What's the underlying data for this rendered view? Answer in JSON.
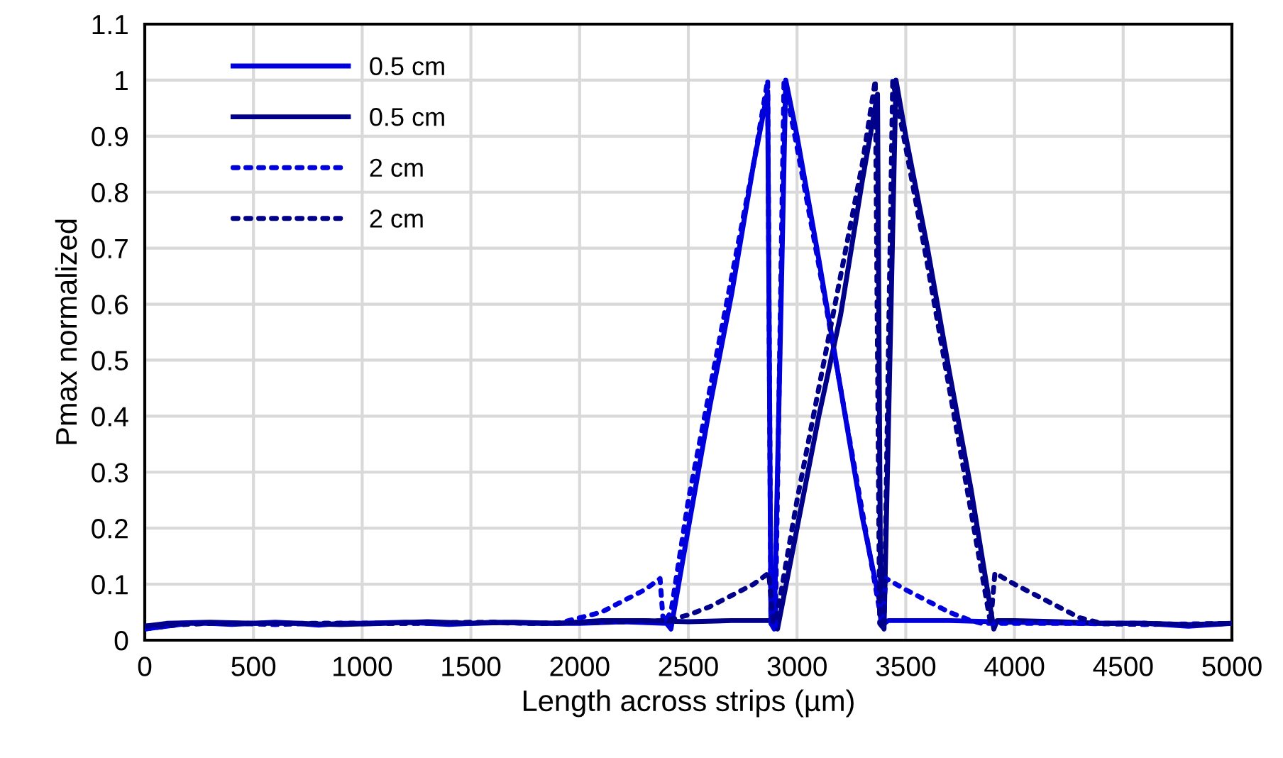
{
  "chart_data": {
    "type": "line",
    "xlabel": "Length across strips (µm)",
    "ylabel": "Pmax normalized",
    "xlim": [
      0,
      5000
    ],
    "xticks": [
      0,
      500,
      1000,
      1500,
      2000,
      2500,
      3000,
      3500,
      4000,
      4500,
      5000
    ],
    "ylim": [
      0,
      1.1
    ],
    "yticks": [
      0,
      0.1,
      0.2,
      0.3,
      0.4,
      0.5,
      0.6,
      0.7,
      0.8,
      0.9,
      1,
      1.1
    ],
    "grid": true,
    "legend": "top left",
    "marker": "none",
    "series": [
      {
        "name": "0.5 cm",
        "color": "#0000dd",
        "line_style": "solid",
        "x": [
          0,
          100,
          200,
          300,
          400,
          500,
          600,
          700,
          800,
          900,
          1000,
          1200,
          1400,
          1600,
          1800,
          2000,
          2200,
          2400,
          2420,
          2500,
          2600,
          2700,
          2800,
          2865,
          2880,
          2895,
          2948,
          3000,
          3100,
          3200,
          3300,
          3400,
          3420,
          3500,
          3700,
          4000,
          4300,
          4600,
          4800,
          5000
        ],
        "values": [
          0.02,
          0.025,
          0.03,
          0.03,
          0.028,
          0.03,
          0.032,
          0.03,
          0.027,
          0.03,
          0.03,
          0.032,
          0.028,
          0.032,
          0.03,
          0.03,
          0.033,
          0.03,
          0.02,
          0.2,
          0.42,
          0.62,
          0.85,
          0.98,
          0.03,
          0.02,
          1.0,
          0.9,
          0.68,
          0.45,
          0.22,
          0.03,
          0.035,
          0.035,
          0.035,
          0.032,
          0.03,
          0.03,
          0.025,
          0.03
        ]
      },
      {
        "name": "0.5 cm",
        "color": "#00008b",
        "line_style": "solid",
        "x": [
          0,
          100,
          300,
          500,
          700,
          900,
          1100,
          1300,
          1500,
          1700,
          1900,
          2100,
          2300,
          2500,
          2700,
          2895,
          2910,
          2925,
          3000,
          3100,
          3200,
          3300,
          3370,
          3385,
          3400,
          3455,
          3500,
          3600,
          3700,
          3800,
          3905,
          3920,
          4000,
          4200,
          4400,
          4600,
          4800,
          5000
        ],
        "values": [
          0.025,
          0.03,
          0.032,
          0.03,
          0.03,
          0.028,
          0.03,
          0.033,
          0.03,
          0.032,
          0.03,
          0.035,
          0.035,
          0.033,
          0.035,
          0.035,
          0.02,
          0.05,
          0.2,
          0.4,
          0.58,
          0.82,
          0.975,
          0.03,
          0.02,
          1.0,
          0.9,
          0.7,
          0.48,
          0.27,
          0.02,
          0.035,
          0.035,
          0.033,
          0.03,
          0.03,
          0.028,
          0.03
        ]
      },
      {
        "name": "2 cm",
        "color": "#0000dd",
        "line_style": "dotted",
        "x": [
          0,
          200,
          400,
          600,
          800,
          1000,
          1200,
          1400,
          1600,
          1800,
          1900,
          2000,
          2100,
          2200,
          2300,
          2370,
          2385,
          2420,
          2500,
          2600,
          2700,
          2800,
          2865,
          2880,
          2900,
          2940,
          3000,
          3100,
          3200,
          3300,
          3390,
          3410,
          3500,
          3600,
          3700,
          3800,
          3850,
          4000,
          4300,
          4600,
          5000
        ],
        "values": [
          0.02,
          0.03,
          0.03,
          0.028,
          0.03,
          0.03,
          0.03,
          0.03,
          0.032,
          0.03,
          0.03,
          0.04,
          0.05,
          0.07,
          0.09,
          0.11,
          0.03,
          0.05,
          0.25,
          0.45,
          0.65,
          0.85,
          1.0,
          0.03,
          0.02,
          1.0,
          0.88,
          0.67,
          0.45,
          0.23,
          0.03,
          0.11,
          0.09,
          0.07,
          0.05,
          0.035,
          0.03,
          0.03,
          0.03,
          0.028,
          0.03
        ]
      },
      {
        "name": "2 cm",
        "color": "#00008b",
        "line_style": "dotted",
        "x": [
          0,
          300,
          600,
          900,
          1200,
          1500,
          1800,
          2100,
          2400,
          2500,
          2600,
          2700,
          2800,
          2870,
          2890,
          2910,
          3000,
          3100,
          3200,
          3300,
          3360,
          3380,
          3400,
          3440,
          3500,
          3600,
          3700,
          3800,
          3890,
          3910,
          4000,
          4100,
          4200,
          4300,
          4400,
          4600,
          4800,
          5000
        ],
        "values": [
          0.025,
          0.03,
          0.03,
          0.03,
          0.03,
          0.032,
          0.03,
          0.032,
          0.035,
          0.045,
          0.06,
          0.08,
          0.1,
          0.12,
          0.03,
          0.05,
          0.25,
          0.45,
          0.65,
          0.85,
          1.0,
          0.03,
          0.02,
          1.0,
          0.88,
          0.67,
          0.45,
          0.23,
          0.03,
          0.12,
          0.1,
          0.08,
          0.06,
          0.04,
          0.03,
          0.03,
          0.028,
          0.03
        ]
      }
    ]
  }
}
